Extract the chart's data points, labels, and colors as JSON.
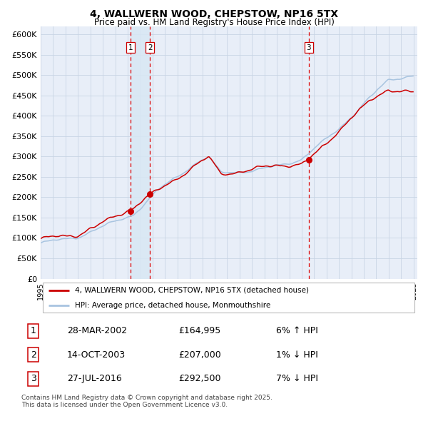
{
  "title": "4, WALLWERN WOOD, CHEPSTOW, NP16 5TX",
  "subtitle": "Price paid vs. HM Land Registry's House Price Index (HPI)",
  "legend_line1": "4, WALLWERN WOOD, CHEPSTOW, NP16 5TX (detached house)",
  "legend_line2": "HPI: Average price, detached house, Monmouthshire",
  "annotation_footnote": "Contains HM Land Registry data © Crown copyright and database right 2025.\nThis data is licensed under the Open Government Licence v3.0.",
  "transactions": [
    {
      "id": 1,
      "date": "28-MAR-2002",
      "price": 164995,
      "pct": "6%",
      "dir": "↑"
    },
    {
      "id": 2,
      "date": "14-OCT-2003",
      "price": 207000,
      "pct": "1%",
      "dir": "↓"
    },
    {
      "id": 3,
      "date": "27-JUL-2016",
      "price": 292500,
      "pct": "7%",
      "dir": "↓"
    }
  ],
  "transaction_years": [
    2002.23,
    2003.79,
    2016.56
  ],
  "transaction_prices": [
    164995,
    207000,
    292500
  ],
  "ylim": [
    0,
    620000
  ],
  "yticks": [
    0,
    50000,
    100000,
    150000,
    200000,
    250000,
    300000,
    350000,
    400000,
    450000,
    500000,
    550000,
    600000
  ],
  "hpi_color": "#a8c4e0",
  "price_color": "#cc0000",
  "dot_color": "#cc0000",
  "vline_color": "#dd0000",
  "shade_color": "#d8e8f4",
  "grid_color": "#c8d4e4",
  "background_color": "#e8eef8"
}
